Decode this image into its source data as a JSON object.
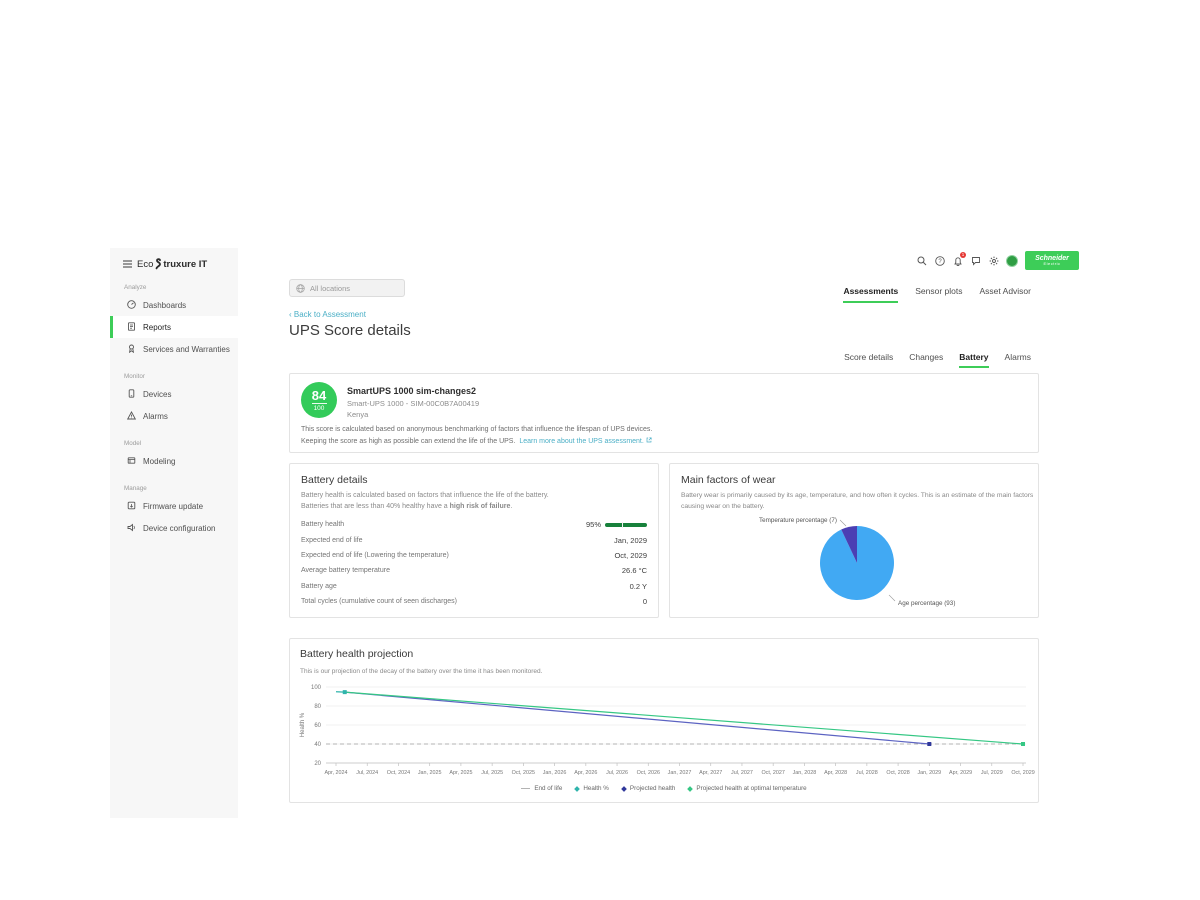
{
  "brand": {
    "logo_prefix": "Eco",
    "logo_suffix": "truxure IT",
    "vendor_name_line1": "Schneider",
    "vendor_name_line2": "Electric",
    "accent_green": "#3dcd58"
  },
  "topbar": {
    "notification_count": "1",
    "location_filter": "All locations"
  },
  "sidebar": {
    "sections": [
      {
        "label": "Analyze",
        "items": [
          {
            "label": "Dashboards",
            "icon": "gauge-icon",
            "active": false
          },
          {
            "label": "Reports",
            "icon": "report-icon",
            "active": true
          },
          {
            "label": "Services and Warranties",
            "icon": "services-icon",
            "active": false
          }
        ]
      },
      {
        "label": "Monitor",
        "items": [
          {
            "label": "Devices",
            "icon": "device-icon",
            "active": false
          },
          {
            "label": "Alarms",
            "icon": "alarm-icon",
            "active": false
          }
        ]
      },
      {
        "label": "Model",
        "items": [
          {
            "label": "Modeling",
            "icon": "modeling-icon",
            "active": false
          }
        ]
      },
      {
        "label": "Manage",
        "items": [
          {
            "label": "Firmware update",
            "icon": "firmware-icon",
            "active": false
          },
          {
            "label": "Device configuration",
            "icon": "configuration-icon",
            "active": false
          }
        ]
      }
    ]
  },
  "tabs": [
    {
      "label": "Assessments",
      "active": true
    },
    {
      "label": "Sensor plots",
      "active": false
    },
    {
      "label": "Asset Advisor",
      "active": false
    }
  ],
  "page": {
    "back_link": "Back to Assessment",
    "title": "UPS Score details"
  },
  "subtabs": [
    {
      "label": "Score details",
      "active": false
    },
    {
      "label": "Changes",
      "active": false
    },
    {
      "label": "Battery",
      "active": true
    },
    {
      "label": "Alarms",
      "active": false
    }
  ],
  "score_card": {
    "score": "84",
    "score_max": "100",
    "device_name": "SmartUPS 1000 sim-changes2",
    "device_model": "Smart-UPS 1000 - SIM-00C0B7A00419",
    "location": "Kenya",
    "description_line1": "This score is calculated based on anonymous benchmarking of factors that influence the lifespan of UPS devices.",
    "description_line2": "Keeping the score as high as possible can extend the life of the UPS.",
    "learn_more_link": "Learn more about the UPS assessment."
  },
  "battery_details": {
    "title": "Battery details",
    "description_line1": "Battery health is calculated based on factors that influence the life of the battery.",
    "description_line2_prefix": "Batteries that are less than 40% healthy have a ",
    "description_line2_bold": "high risk of failure",
    "description_line2_suffix": ".",
    "rows": [
      {
        "label": "Battery health",
        "value": "95%",
        "bar_percent": 95
      },
      {
        "label": "Expected end of life",
        "value": "Jan, 2029"
      },
      {
        "label": "Expected end of life (Lowering the temperature)",
        "value": "Oct, 2029"
      },
      {
        "label": "Average battery temperature",
        "value": "26.6 °C"
      },
      {
        "label": "Battery age",
        "value": "0.2 Y"
      },
      {
        "label": "Total cycles (cumulative count of seen discharges)",
        "value": "0"
      }
    ]
  },
  "wear": {
    "title": "Main factors of wear",
    "description": "Battery wear is primarily caused by its age, temperature, and how often it cycles. This is an estimate of the main factors causing wear on the battery."
  },
  "projection": {
    "title": "Battery health projection",
    "description": "This is our projection of the decay of the battery over the time it has been monitored."
  },
  "chart_data": [
    {
      "type": "pie",
      "title": "Main factors of wear",
      "slices": [
        {
          "label": "Temperature percentage",
          "value": 7,
          "color": "#4b3fb3"
        },
        {
          "label": "Age percentage",
          "value": 93,
          "color": "#41a9f3"
        }
      ]
    },
    {
      "type": "line",
      "title": "Battery health projection",
      "ylabel": "Health %",
      "ylim": [
        20,
        100
      ],
      "y_ticks": [
        20,
        40,
        60,
        80,
        100
      ],
      "x_ticks": [
        "Apr, 2024",
        "Jul, 2024",
        "Oct, 2024",
        "Jan, 2025",
        "Apr, 2025",
        "Jul, 2025",
        "Oct, 2025",
        "Jan, 2026",
        "Apr, 2026",
        "Jul, 2026",
        "Oct, 2026",
        "Jan, 2027",
        "Apr, 2027",
        "Jul, 2027",
        "Oct, 2027",
        "Jan, 2028",
        "Apr, 2028",
        "Jul, 2028",
        "Oct, 2028",
        "Jan, 2029",
        "Apr, 2029",
        "Jul, 2029",
        "Oct, 2029"
      ],
      "grid": true,
      "legend_position": "bottom",
      "series": [
        {
          "name": "End of life",
          "style": "dashed",
          "color": "#b3b3b3",
          "value": 40
        },
        {
          "name": "Health %",
          "style": "line",
          "color": "#2fb4ac",
          "points": [
            [
              0,
              95
            ],
            [
              0.28,
              94.6
            ]
          ],
          "marker_points": [
            1
          ]
        },
        {
          "name": "Projected health",
          "style": "line",
          "color": "#5c63c2",
          "marker_color": "#30389b",
          "points": [
            [
              0.28,
              94.6
            ],
            [
              19,
              40
            ]
          ],
          "marker_points": [
            1
          ]
        },
        {
          "name": "Projected health at optimal temperature",
          "style": "line",
          "color": "#35c784",
          "points": [
            [
              0.28,
              94.6
            ],
            [
              22,
              40
            ]
          ],
          "marker_points": [
            1
          ]
        }
      ]
    }
  ]
}
